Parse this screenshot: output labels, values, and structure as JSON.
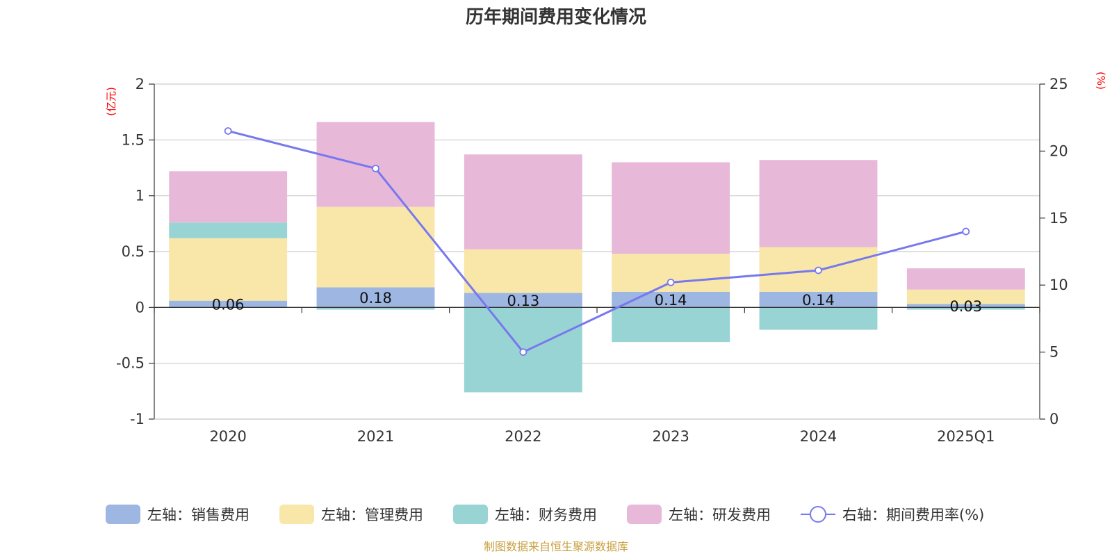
{
  "chart_data": {
    "type": "bar",
    "title": "历年期间费用变化情况",
    "categories": [
      "2020",
      "2021",
      "2022",
      "2023",
      "2024",
      "2025Q1"
    ],
    "left_axis": {
      "unit": "(亿元)",
      "ylim": [
        -1,
        2
      ],
      "ticks": [
        -1,
        -0.5,
        0,
        0.5,
        1,
        1.5,
        2
      ]
    },
    "right_axis": {
      "unit": "(%)",
      "ylim": [
        0,
        25
      ],
      "ticks": [
        0,
        5,
        10,
        15,
        20,
        25
      ]
    },
    "stacked": true,
    "grid": true,
    "legend_position": "bottom",
    "series": [
      {
        "name": "左轴：销售费用",
        "type": "bar",
        "axis": "left",
        "color": "#9db6e2",
        "values": [
          0.06,
          0.18,
          0.13,
          0.14,
          0.14,
          0.03
        ],
        "labels": [
          "0.06",
          "0.18",
          "0.13",
          "0.14",
          "0.14",
          "0.03"
        ]
      },
      {
        "name": "左轴：管理费用",
        "type": "bar",
        "axis": "left",
        "color": "#f8e7a9",
        "values": [
          0.56,
          0.72,
          0.39,
          0.34,
          0.4,
          0.13
        ]
      },
      {
        "name": "左轴：财务费用",
        "type": "bar",
        "axis": "left",
        "color": "#98d4d4",
        "values": [
          0.14,
          -0.02,
          -0.76,
          -0.31,
          -0.2,
          -0.02
        ]
      },
      {
        "name": "左轴：研发费用",
        "type": "bar",
        "axis": "left",
        "color": "#e8b8d8",
        "values": [
          0.46,
          0.76,
          0.85,
          0.82,
          0.78,
          0.19
        ]
      },
      {
        "name": "右轴：期间费用率(%)",
        "type": "line",
        "axis": "right",
        "color": "#7878ee",
        "values": [
          21.5,
          18.7,
          5.0,
          10.2,
          11.1,
          14.0
        ]
      }
    ],
    "source": "制图数据来自恒生聚源数据库"
  }
}
